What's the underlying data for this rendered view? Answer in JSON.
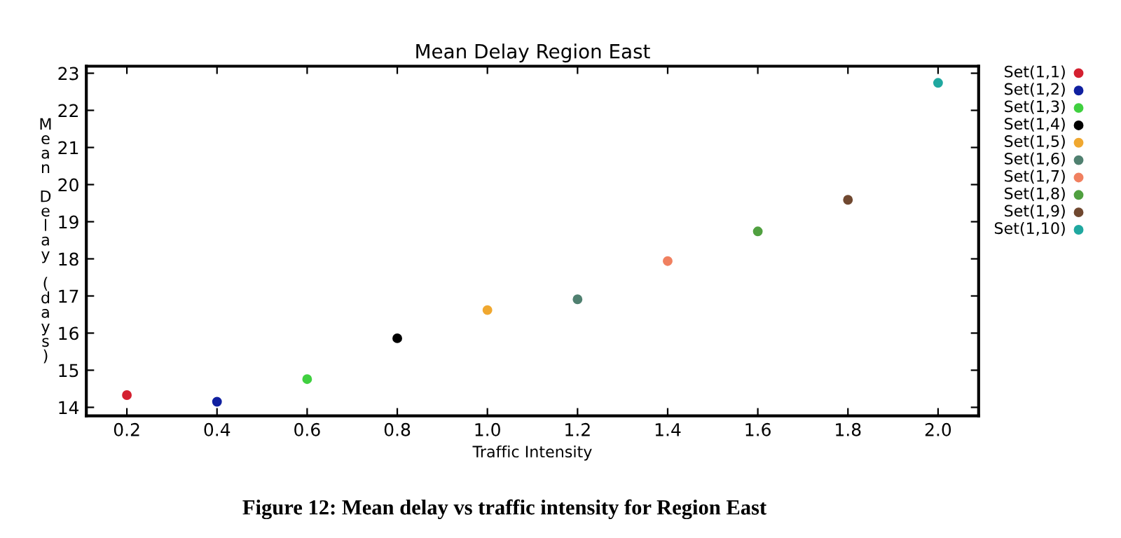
{
  "chart_data": {
    "type": "scatter",
    "title": "Mean Delay Region East",
    "xlabel": "Traffic Intensity",
    "ylabel": "Mean Delay (days)",
    "annotations": [
      "Figure 12: Mean delay vs traffic intensity for Region East"
    ],
    "series": [
      {
        "name": "Set(1,1)",
        "color": "#d42030",
        "x": [
          0.2
        ],
        "values": [
          14.33
        ]
      },
      {
        "name": "Set(1,2)",
        "color": "#1020a0",
        "x": [
          0.4
        ],
        "values": [
          14.15
        ]
      },
      {
        "name": "Set(1,3)",
        "color": "#40d040",
        "x": [
          0.6
        ],
        "values": [
          14.76
        ]
      },
      {
        "name": "Set(1,4)",
        "color": "#000000",
        "x": [
          0.8
        ],
        "values": [
          15.86
        ]
      },
      {
        "name": "Set(1,5)",
        "color": "#f0a830",
        "x": [
          1.0
        ],
        "values": [
          16.62
        ]
      },
      {
        "name": "Set(1,6)",
        "color": "#508070",
        "x": [
          1.2
        ],
        "values": [
          16.91
        ]
      },
      {
        "name": "Set(1,7)",
        "color": "#f08060",
        "x": [
          1.4
        ],
        "values": [
          17.94
        ]
      },
      {
        "name": "Set(1,8)",
        "color": "#50a040",
        "x": [
          1.6
        ],
        "values": [
          18.74
        ]
      },
      {
        "name": "Set(1,9)",
        "color": "#704830",
        "x": [
          1.8
        ],
        "values": [
          19.59
        ]
      },
      {
        "name": "Set(1,10)",
        "color": "#20a8a0",
        "x": [
          2.0
        ],
        "values": [
          22.74
        ]
      }
    ],
    "xlim": [
      0.11,
      2.09
    ],
    "ylim": [
      13.77,
      23.19
    ],
    "xticks": [
      {
        "value": 0.2,
        "label": "0.2"
      },
      {
        "value": 0.4,
        "label": "0.4"
      },
      {
        "value": 0.6,
        "label": "0.6"
      },
      {
        "value": 0.8,
        "label": "0.8"
      },
      {
        "value": 1.0,
        "label": "1.0"
      },
      {
        "value": 1.2,
        "label": "1.2"
      },
      {
        "value": 1.4,
        "label": "1.4"
      },
      {
        "value": 1.6,
        "label": "1.6"
      },
      {
        "value": 1.8,
        "label": "1.8"
      },
      {
        "value": 2.0,
        "label": "2.0"
      }
    ],
    "yticks": [
      14,
      15,
      16,
      17,
      18,
      19,
      20,
      21,
      22,
      23
    ],
    "marker": "circle",
    "legend": "right",
    "grid": false
  }
}
